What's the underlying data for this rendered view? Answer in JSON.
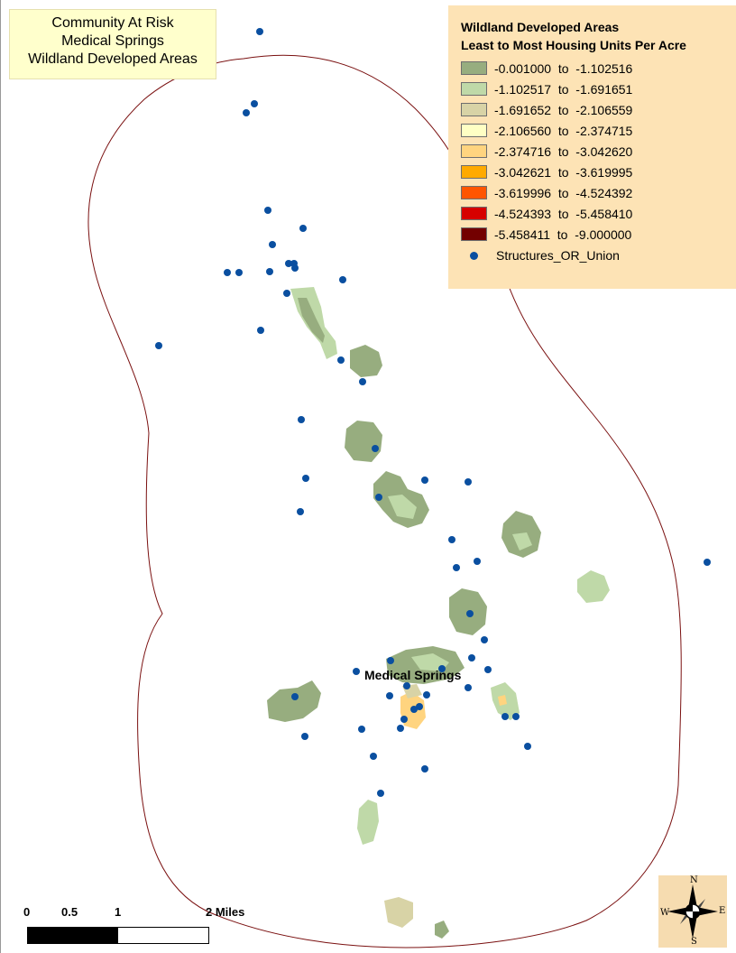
{
  "title_box": {
    "lines": [
      "Community At Risk",
      "Medical Springs",
      "Wildland Developed Areas"
    ]
  },
  "legend": {
    "title": "Wildland Developed Areas",
    "subtitle": "Least to Most Housing Units Per Acre",
    "classes": [
      {
        "label": "-0.001000  to  -1.102516",
        "color": "#97ad7f"
      },
      {
        "label": "-1.102517  to  -1.691651",
        "color": "#bfd9a8"
      },
      {
        "label": "-1.691652  to  -2.106559",
        "color": "#d8d3a6"
      },
      {
        "label": "-2.106560  to  -2.374715",
        "color": "#ffffc4"
      },
      {
        "label": "-2.374716  to  -3.042620",
        "color": "#ffd47f"
      },
      {
        "label": "-3.042621  to  -3.619995",
        "color": "#ffaa00"
      },
      {
        "label": "-3.619996  to  -4.524392",
        "color": "#ff5500"
      },
      {
        "label": "-4.524393  to  -5.458410",
        "color": "#d60000"
      },
      {
        "label": "-5.458411  to  -9.000000",
        "color": "#730000"
      }
    ],
    "point_label": "Structures_OR_Union",
    "point_color": "#0a4fa0"
  },
  "place_label": "Medical Springs",
  "scale_bar": {
    "labels": [
      "0",
      "0.5",
      "1",
      "2 Miles"
    ]
  },
  "compass": {
    "n": "N",
    "s": "S",
    "e": "E",
    "w": "W"
  },
  "colors": {
    "boundary": "#7a1010",
    "background": "#ffffff"
  }
}
